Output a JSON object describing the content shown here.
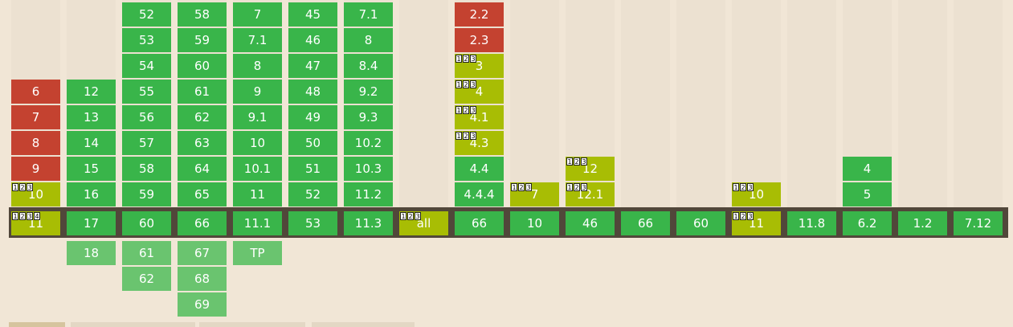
{
  "columns": [
    {
      "key": "ie",
      "past": [
        {
          "v": "6",
          "s": "n"
        },
        {
          "v": "7",
          "s": "n"
        },
        {
          "v": "8",
          "s": "n"
        },
        {
          "v": "9",
          "s": "n"
        },
        {
          "v": "10",
          "s": "a",
          "notes": [
            "1",
            "2",
            "3"
          ]
        }
      ],
      "current": {
        "v": "11",
        "s": "a",
        "notes": [
          "1",
          "2",
          "3",
          "4"
        ]
      },
      "future": []
    },
    {
      "key": "edge",
      "past": [
        {
          "v": "12",
          "s": "y"
        },
        {
          "v": "13",
          "s": "y"
        },
        {
          "v": "14",
          "s": "y"
        },
        {
          "v": "15",
          "s": "y"
        },
        {
          "v": "16",
          "s": "y"
        }
      ],
      "current": {
        "v": "17",
        "s": "y"
      },
      "future": [
        {
          "v": "18",
          "s": "f"
        }
      ]
    },
    {
      "key": "firefox",
      "past": [
        {
          "v": "52",
          "s": "y"
        },
        {
          "v": "53",
          "s": "y"
        },
        {
          "v": "54",
          "s": "y"
        },
        {
          "v": "55",
          "s": "y"
        },
        {
          "v": "56",
          "s": "y"
        },
        {
          "v": "57",
          "s": "y"
        },
        {
          "v": "58",
          "s": "y"
        },
        {
          "v": "59",
          "s": "y"
        }
      ],
      "current": {
        "v": "60",
        "s": "y"
      },
      "future": [
        {
          "v": "61",
          "s": "f"
        },
        {
          "v": "62",
          "s": "f"
        }
      ]
    },
    {
      "key": "chrome",
      "past": [
        {
          "v": "58",
          "s": "y"
        },
        {
          "v": "59",
          "s": "y"
        },
        {
          "v": "60",
          "s": "y"
        },
        {
          "v": "61",
          "s": "y"
        },
        {
          "v": "62",
          "s": "y"
        },
        {
          "v": "63",
          "s": "y"
        },
        {
          "v": "64",
          "s": "y"
        },
        {
          "v": "65",
          "s": "y"
        }
      ],
      "current": {
        "v": "66",
        "s": "y"
      },
      "future": [
        {
          "v": "67",
          "s": "f"
        },
        {
          "v": "68",
          "s": "f"
        },
        {
          "v": "69",
          "s": "f"
        }
      ]
    },
    {
      "key": "safari",
      "past": [
        {
          "v": "7",
          "s": "y"
        },
        {
          "v": "7.1",
          "s": "y"
        },
        {
          "v": "8",
          "s": "y"
        },
        {
          "v": "9",
          "s": "y"
        },
        {
          "v": "9.1",
          "s": "y"
        },
        {
          "v": "10",
          "s": "y"
        },
        {
          "v": "10.1",
          "s": "y"
        },
        {
          "v": "11",
          "s": "y"
        }
      ],
      "current": {
        "v": "11.1",
        "s": "y"
      },
      "future": [
        {
          "v": "TP",
          "s": "f"
        }
      ]
    },
    {
      "key": "opera",
      "past": [
        {
          "v": "45",
          "s": "y"
        },
        {
          "v": "46",
          "s": "y"
        },
        {
          "v": "47",
          "s": "y"
        },
        {
          "v": "48",
          "s": "y"
        },
        {
          "v": "49",
          "s": "y"
        },
        {
          "v": "50",
          "s": "y"
        },
        {
          "v": "51",
          "s": "y"
        },
        {
          "v": "52",
          "s": "y"
        }
      ],
      "current": {
        "v": "53",
        "s": "y"
      },
      "future": []
    },
    {
      "key": "ios-safari",
      "past": [
        {
          "v": "7.1",
          "s": "y"
        },
        {
          "v": "8",
          "s": "y"
        },
        {
          "v": "8.4",
          "s": "y"
        },
        {
          "v": "9.2",
          "s": "y"
        },
        {
          "v": "9.3",
          "s": "y"
        },
        {
          "v": "10.2",
          "s": "y"
        },
        {
          "v": "10.3",
          "s": "y"
        },
        {
          "v": "11.2",
          "s": "y"
        }
      ],
      "current": {
        "v": "11.3",
        "s": "y"
      },
      "future": []
    },
    {
      "key": "opera-mini",
      "past": [],
      "current": {
        "v": "all",
        "s": "a",
        "notes": [
          "1",
          "2",
          "3"
        ]
      },
      "future": []
    },
    {
      "key": "android-browser",
      "past": [
        {
          "v": "2.2",
          "s": "n"
        },
        {
          "v": "2.3",
          "s": "n"
        },
        {
          "v": "3",
          "s": "a",
          "notes": [
            "1",
            "2",
            "3"
          ]
        },
        {
          "v": "4",
          "s": "a",
          "notes": [
            "1",
            "2",
            "3"
          ]
        },
        {
          "v": "4.1",
          "s": "a",
          "notes": [
            "1",
            "2",
            "3"
          ]
        },
        {
          "v": "4.3",
          "s": "a",
          "notes": [
            "1",
            "2",
            "3"
          ]
        },
        {
          "v": "4.4",
          "s": "y"
        },
        {
          "v": "4.4.4",
          "s": "y"
        }
      ],
      "current": {
        "v": "66",
        "s": "y"
      },
      "future": []
    },
    {
      "key": "blackberry",
      "past": [
        {
          "v": "7",
          "s": "a",
          "notes": [
            "1",
            "2",
            "3"
          ]
        }
      ],
      "current": {
        "v": "10",
        "s": "y"
      },
      "future": []
    },
    {
      "key": "opera-mobile",
      "past": [
        {
          "v": "12",
          "s": "a",
          "notes": [
            "1",
            "2",
            "3"
          ]
        },
        {
          "v": "12.1",
          "s": "a",
          "notes": [
            "1",
            "2",
            "3"
          ]
        }
      ],
      "current": {
        "v": "46",
        "s": "y"
      },
      "future": []
    },
    {
      "key": "chrome-android",
      "past": [],
      "current": {
        "v": "66",
        "s": "y"
      },
      "future": []
    },
    {
      "key": "firefox-android",
      "past": [],
      "current": {
        "v": "60",
        "s": "y"
      },
      "future": []
    },
    {
      "key": "ie-mobile",
      "past": [
        {
          "v": "10",
          "s": "a",
          "notes": [
            "1",
            "2",
            "3"
          ]
        }
      ],
      "current": {
        "v": "11",
        "s": "a",
        "notes": [
          "1",
          "2",
          "3"
        ]
      },
      "future": []
    },
    {
      "key": "uc-browser",
      "past": [],
      "current": {
        "v": "11.8",
        "s": "y"
      },
      "future": []
    },
    {
      "key": "samsung-internet",
      "past": [
        {
          "v": "4",
          "s": "y"
        },
        {
          "v": "5",
          "s": "y"
        }
      ],
      "current": {
        "v": "6.2",
        "s": "y"
      },
      "future": []
    },
    {
      "key": "qq-browser",
      "past": [],
      "current": {
        "v": "1.2",
        "s": "y"
      },
      "future": []
    },
    {
      "key": "baidu-browser",
      "past": [],
      "current": {
        "v": "7.12",
        "s": "y"
      },
      "future": []
    }
  ],
  "colors": {
    "supported": "#39b54a",
    "not_supported": "#c44230",
    "partial": "#a8bd04",
    "future_supported": "#6ac46f",
    "current_bar": "#51473a",
    "background": "#f1e6d6"
  }
}
